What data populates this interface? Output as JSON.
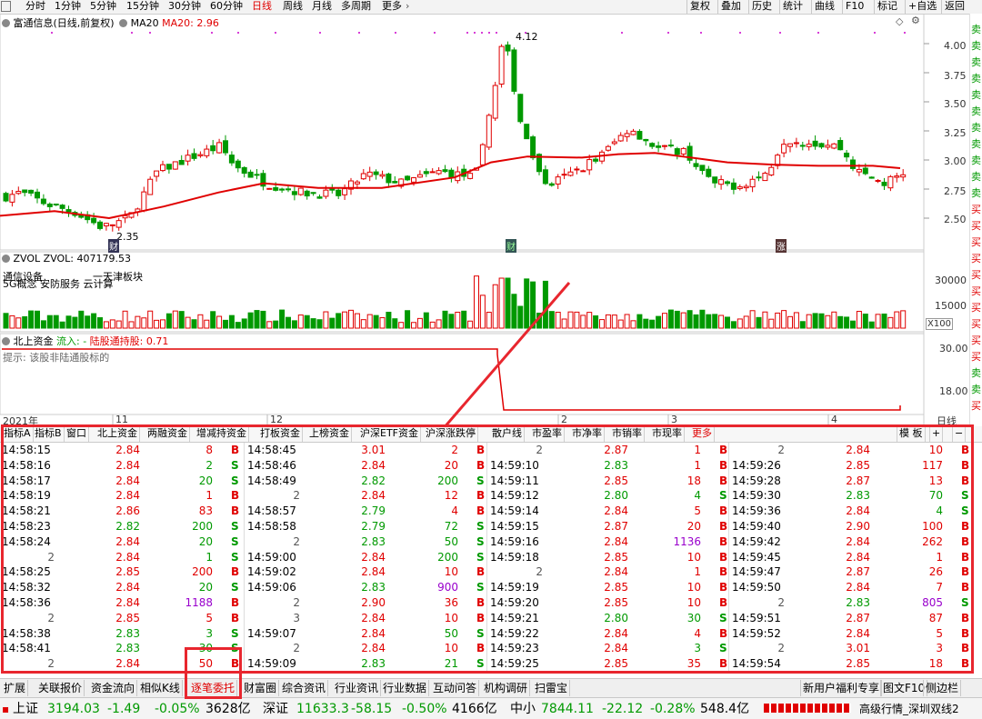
{
  "toolbar": {
    "periods": [
      "分时",
      "1分钟",
      "5分钟",
      "15分钟",
      "30分钟",
      "60分钟",
      "日线",
      "周线",
      "月线",
      "多周期",
      "更多"
    ],
    "active_period": "日线",
    "right_buttons": [
      "复权",
      "叠加",
      "历史",
      "统计",
      "曲线",
      "F10",
      "标记",
      "+自选",
      "返回"
    ]
  },
  "main": {
    "title": "富通信息(日线,前复权)",
    "ma_label": "MA20",
    "ma_value": "MA20: 2.96",
    "price_axis": [
      "4.00",
      "3.75",
      "3.50",
      "3.25",
      "3.00",
      "2.75",
      "2.50"
    ],
    "high_label": "4.12",
    "low_label": "2.35",
    "markers": [
      "财",
      "财",
      "涨"
    ],
    "colors": {
      "up": "#e00000",
      "down": "#009900",
      "ma": "#e00000"
    }
  },
  "volume": {
    "title": "ZVOL",
    "value": "ZVOL: 407179.53",
    "concept_line1": "通信设备",
    "concept_line1b": "一天津板块",
    "concept_line2": "5G概念 安防服务 云计算",
    "axis": [
      "30000",
      "15000"
    ],
    "unit": "X100"
  },
  "northbound": {
    "title": "北上资金",
    "inflow": "流入: -",
    "holding": "陆股通持股: 0.71",
    "hint": "提示: 该股非陆通股标的",
    "axis": [
      "30.00",
      "18.00"
    ]
  },
  "date_axis": {
    "labels": [
      "2021年",
      "11",
      "12",
      "2",
      "3",
      "4"
    ],
    "period": "日线"
  },
  "right_strip": [
    "卖",
    "卖",
    "卖",
    "卖",
    "卖",
    "卖",
    "卖",
    "卖",
    "卖",
    "卖",
    "卖",
    "买",
    "买",
    "买",
    "买",
    "买",
    "买",
    "买",
    "买",
    "买",
    "买",
    "卖",
    "卖",
    "买"
  ],
  "tick_tabs": [
    "指标A",
    "指标B",
    "窗口",
    "北上资金",
    "两融资金",
    "增减持资金",
    "打板资金",
    "上榜资金",
    "沪深ETF资金",
    "沪深涨跌停",
    "散户线",
    "市盈率",
    "市净率",
    "市销率",
    "市现率",
    "更多"
  ],
  "tick_controls": [
    "模 板",
    "+",
    "−"
  ],
  "tick_columns": [
    [
      [
        "14:58:15",
        "2.84",
        "8",
        "B"
      ],
      [
        "14:58:16",
        "2.84",
        "2",
        "S"
      ],
      [
        "14:58:17",
        "2.84",
        "20",
        "S"
      ],
      [
        "14:58:19",
        "2.84",
        "1",
        "B"
      ],
      [
        "14:58:21",
        "2.86",
        "83",
        "B"
      ],
      [
        "14:58:23",
        "2.82",
        "200",
        "S"
      ],
      [
        "14:58:24",
        "2.84",
        "20",
        "S"
      ],
      [
        "2",
        "2.84",
        "1",
        "S"
      ],
      [
        "14:58:25",
        "2.85",
        "200",
        "B"
      ],
      [
        "14:58:32",
        "2.84",
        "20",
        "S"
      ],
      [
        "14:58:36",
        "2.84",
        "1188",
        "B"
      ],
      [
        "2",
        "2.85",
        "5",
        "B"
      ],
      [
        "14:58:38",
        "2.83",
        "3",
        "S"
      ],
      [
        "14:58:41",
        "2.83",
        "30",
        "S"
      ],
      [
        "2",
        "2.84",
        "50",
        "B"
      ]
    ],
    [
      [
        "14:58:45",
        "3.01",
        "2",
        "B"
      ],
      [
        "14:58:46",
        "2.84",
        "20",
        "B"
      ],
      [
        "14:58:49",
        "2.82",
        "200",
        "S"
      ],
      [
        "2",
        "2.84",
        "12",
        "B"
      ],
      [
        "14:58:57",
        "2.79",
        "4",
        "B"
      ],
      [
        "14:58:58",
        "2.79",
        "72",
        "S"
      ],
      [
        "2",
        "2.83",
        "50",
        "S"
      ],
      [
        "14:59:00",
        "2.84",
        "200",
        "S"
      ],
      [
        "14:59:02",
        "2.84",
        "10",
        "B"
      ],
      [
        "14:59:06",
        "2.83",
        "900",
        "S"
      ],
      [
        "2",
        "2.90",
        "36",
        "B"
      ],
      [
        "3",
        "2.84",
        "10",
        "B"
      ],
      [
        "14:59:07",
        "2.84",
        "50",
        "S"
      ],
      [
        "2",
        "2.84",
        "10",
        "B"
      ],
      [
        "14:59:09",
        "2.83",
        "21",
        "S"
      ]
    ],
    [
      [
        "2",
        "2.87",
        "1",
        "B"
      ],
      [
        "14:59:10",
        "2.83",
        "1",
        "B"
      ],
      [
        "14:59:11",
        "2.85",
        "18",
        "B"
      ],
      [
        "14:59:12",
        "2.80",
        "4",
        "S"
      ],
      [
        "14:59:14",
        "2.84",
        "5",
        "B"
      ],
      [
        "14:59:15",
        "2.87",
        "20",
        "B"
      ],
      [
        "14:59:16",
        "2.84",
        "1136",
        "B"
      ],
      [
        "14:59:18",
        "2.85",
        "10",
        "B"
      ],
      [
        "2",
        "2.84",
        "1",
        "B"
      ],
      [
        "14:59:19",
        "2.85",
        "10",
        "B"
      ],
      [
        "14:59:20",
        "2.85",
        "10",
        "B"
      ],
      [
        "14:59:21",
        "2.80",
        "30",
        "S"
      ],
      [
        "14:59:22",
        "2.84",
        "4",
        "B"
      ],
      [
        "14:59:23",
        "2.84",
        "3",
        "S"
      ],
      [
        "14:59:25",
        "2.85",
        "35",
        "B"
      ]
    ],
    [
      [
        "2",
        "2.84",
        "10",
        "B"
      ],
      [
        "14:59:26",
        "2.85",
        "117",
        "B"
      ],
      [
        "14:59:28",
        "2.87",
        "13",
        "B"
      ],
      [
        "14:59:30",
        "2.83",
        "70",
        "S"
      ],
      [
        "14:59:36",
        "2.84",
        "4",
        "S"
      ],
      [
        "14:59:40",
        "2.90",
        "100",
        "B"
      ],
      [
        "14:59:42",
        "2.84",
        "262",
        "B"
      ],
      [
        "14:59:45",
        "2.84",
        "1",
        "B"
      ],
      [
        "14:59:47",
        "2.87",
        "26",
        "B"
      ],
      [
        "14:59:50",
        "2.84",
        "7",
        "B"
      ],
      [
        "2",
        "2.83",
        "805",
        "S"
      ],
      [
        "14:59:51",
        "2.87",
        "87",
        "B"
      ],
      [
        "14:59:52",
        "2.84",
        "5",
        "B"
      ],
      [
        "2",
        "3.01",
        "3",
        "B"
      ],
      [
        "14:59:54",
        "2.85",
        "18",
        "B"
      ]
    ]
  ],
  "bottom_tabs": [
    "扩展",
    "关联报价",
    "资金流向",
    "相似K线",
    "逐笔委托",
    "财富圈",
    "综合资讯",
    "行业资讯",
    "行业数据",
    "互动问答",
    "机构调研",
    "扫雷宝"
  ],
  "bottom_active": "逐笔委托",
  "bottom_right": [
    "新用户福利专享",
    "图文F10",
    "侧边栏"
  ],
  "status": {
    "sh_name": "上证",
    "sh_val": "3194.03",
    "sh_chg": "-1.49",
    "sh_pct": "-0.05%",
    "sh_amt": "3628亿",
    "sz_name": "深证",
    "sz_val": "11633.3",
    "sz_chg": "-58.15",
    "sz_pct": "-0.50%",
    "sz_amt": "4166亿",
    "zx_name": "中小",
    "zx_val": "7844.11",
    "zx_chg": "-22.12",
    "zx_pct": "-0.28%",
    "zx_amt": "548.4亿",
    "server": "高级行情_深圳双线2"
  }
}
